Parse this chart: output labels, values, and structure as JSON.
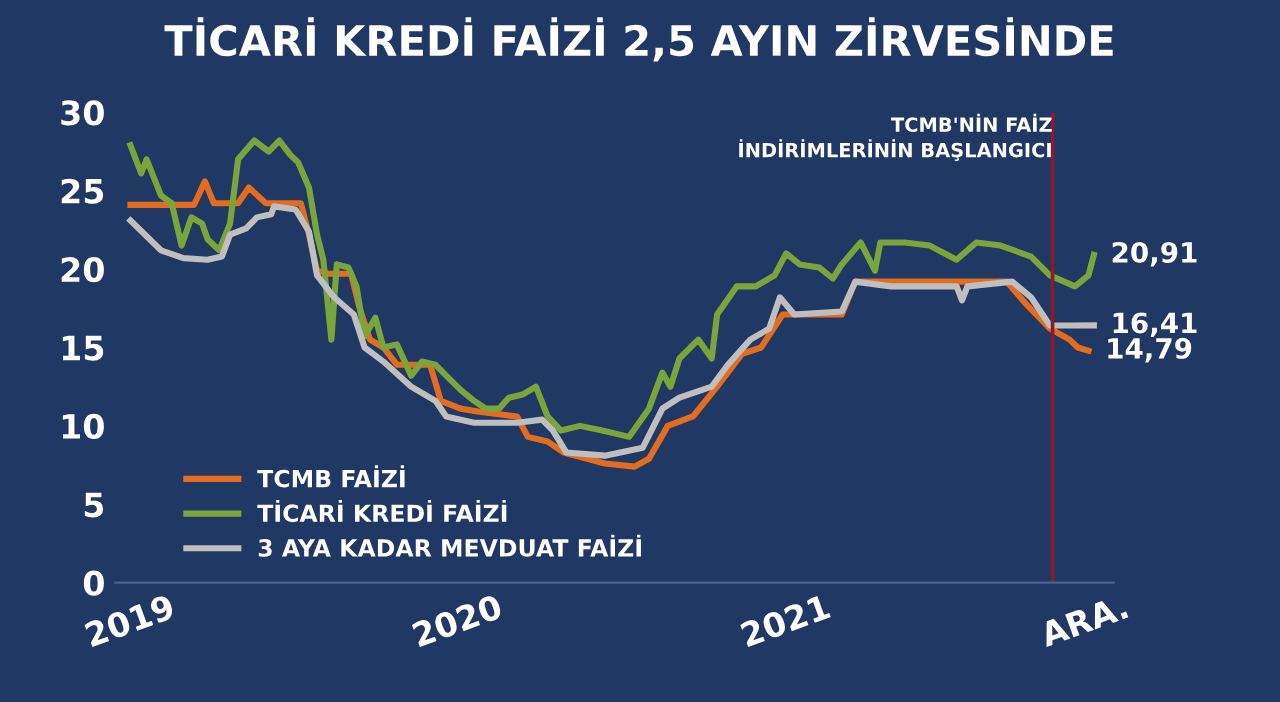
{
  "chart_data": {
    "type": "line",
    "title": "TİCARİ KREDİ FAİZİ 2,5 AYIN ZİRVESİNDE",
    "xlim": [
      "2018-12-15",
      "2022-01-01"
    ],
    "xticks": [
      {
        "value": "2019-01-01",
        "label": "2019"
      },
      {
        "value": "2020-01-01",
        "label": "2020"
      },
      {
        "value": "2021-01-01",
        "label": "2021"
      },
      {
        "value": "2021-12-01",
        "label": "ARA."
      }
    ],
    "ylim": [
      0,
      30
    ],
    "yticks": [
      0,
      5,
      10,
      15,
      20,
      25,
      30
    ],
    "grid": false,
    "legend": "bottom left",
    "line_style": "solid",
    "marker": "none",
    "ref_lines": [
      {
        "axis": "x",
        "value": "2021-10-25",
        "label": "TCMB'NİN FAİZ\nİNDİRİMLERİNİN BAŞLANGICI",
        "color": "#8b1a2a"
      }
    ],
    "series": [
      {
        "name": "TCMB FAİZİ",
        "color": "#e46c1f",
        "x": [
          "2019-01-01",
          "2019-03-13",
          "2019-03-25",
          "2019-04-04",
          "2019-05-01",
          "2019-05-13",
          "2019-06-01",
          "2019-07-10",
          "2019-07-19",
          "2019-07-28",
          "2019-08-10",
          "2019-09-04",
          "2019-09-13",
          "2019-09-25",
          "2019-10-10",
          "2019-10-25",
          "2019-12-01",
          "2019-12-13",
          "2020-01-04",
          "2020-01-25",
          "2020-03-07",
          "2020-03-19",
          "2020-04-10",
          "2020-04-28",
          "2020-06-13",
          "2020-07-16",
          "2020-08-01",
          "2020-08-22",
          "2020-09-19",
          "2020-10-16",
          "2020-11-13",
          "2020-12-04",
          "2020-12-28",
          "2021-03-04",
          "2021-03-19",
          "2021-09-04",
          "2021-09-25",
          "2021-10-22",
          "2021-11-13",
          "2021-11-22",
          "2021-12-04"
        ],
        "values": [
          24.1,
          24.1,
          25.6,
          24.2,
          24.2,
          25.2,
          24.2,
          24.2,
          22.2,
          19.9,
          19.7,
          19.7,
          17.6,
          15.5,
          15.0,
          13.9,
          13.9,
          11.6,
          11.1,
          10.9,
          10.6,
          9.3,
          9.0,
          8.3,
          7.6,
          7.4,
          7.9,
          10.0,
          10.6,
          12.5,
          14.6,
          15.0,
          17.1,
          17.1,
          19.2,
          19.2,
          17.8,
          16.2,
          15.5,
          15.0,
          14.79
        ],
        "value_labels": [
          null,
          null,
          null,
          null,
          null,
          null,
          null,
          null,
          null,
          null,
          null,
          null,
          null,
          null,
          null,
          null,
          null,
          null,
          null,
          null,
          null,
          null,
          null,
          null,
          null,
          null,
          null,
          null,
          null,
          null,
          null,
          null,
          null,
          null,
          null,
          null,
          null,
          null,
          null,
          null,
          "14,79"
        ]
      },
      {
        "name": "TİCARİ KREDİ FAİZİ",
        "color": "#7aa53a",
        "x": [
          "2019-01-01",
          "2019-01-13",
          "2019-01-19",
          "2019-02-04",
          "2019-02-16",
          "2019-02-27",
          "2019-03-10",
          "2019-03-22",
          "2019-03-28",
          "2019-04-10",
          "2019-04-22",
          "2019-05-01",
          "2019-05-19",
          "2019-06-04",
          "2019-06-16",
          "2019-06-28",
          "2019-07-07",
          "2019-07-19",
          "2019-07-28",
          "2019-08-04",
          "2019-08-13",
          "2019-08-19",
          "2019-09-01",
          "2019-09-10",
          "2019-09-19",
          "2019-10-01",
          "2019-10-10",
          "2019-10-25",
          "2019-11-10",
          "2019-11-22",
          "2019-12-07",
          "2019-12-19",
          "2020-01-04",
          "2020-01-19",
          "2020-02-01",
          "2020-02-16",
          "2020-02-27",
          "2020-03-13",
          "2020-03-28",
          "2020-04-10",
          "2020-04-25",
          "2020-05-16",
          "2020-06-10",
          "2020-07-10",
          "2020-08-01",
          "2020-08-16",
          "2020-08-25",
          "2020-09-04",
          "2020-09-25",
          "2020-10-10",
          "2020-10-16",
          "2020-11-07",
          "2020-11-28",
          "2020-12-19",
          "2021-01-01",
          "2021-01-16",
          "2021-02-07",
          "2021-02-22",
          "2021-03-04",
          "2021-03-25",
          "2021-04-10",
          "2021-04-16",
          "2021-05-13",
          "2021-06-10",
          "2021-07-10",
          "2021-08-01",
          "2021-08-28",
          "2021-10-01",
          "2021-10-22",
          "2021-11-19",
          "2021-12-04",
          "2021-12-10"
        ],
        "values": [
          27.9,
          26.1,
          27.0,
          24.7,
          24.2,
          21.5,
          23.3,
          22.9,
          21.9,
          21.2,
          22.9,
          27.0,
          28.2,
          27.5,
          28.2,
          27.3,
          26.8,
          25.2,
          22.2,
          20.6,
          15.5,
          20.3,
          20.1,
          18.9,
          15.7,
          16.9,
          15.0,
          15.2,
          13.2,
          14.1,
          13.9,
          13.2,
          12.3,
          11.6,
          11.1,
          11.1,
          11.8,
          12.0,
          12.5,
          10.6,
          9.7,
          10.0,
          9.7,
          9.3,
          11.1,
          13.4,
          12.5,
          14.3,
          15.5,
          14.3,
          17.1,
          18.9,
          18.9,
          19.6,
          21.0,
          20.3,
          20.1,
          19.4,
          20.3,
          21.7,
          19.9,
          21.7,
          21.7,
          21.5,
          20.6,
          21.7,
          21.5,
          20.8,
          19.6,
          18.9,
          19.6,
          20.91
        ],
        "value_labels": [
          null,
          null,
          null,
          null,
          null,
          null,
          null,
          null,
          null,
          null,
          null,
          null,
          null,
          null,
          null,
          null,
          null,
          null,
          null,
          null,
          null,
          null,
          null,
          null,
          null,
          null,
          null,
          null,
          null,
          null,
          null,
          null,
          null,
          null,
          null,
          null,
          null,
          null,
          null,
          null,
          null,
          null,
          null,
          null,
          null,
          null,
          null,
          null,
          null,
          null,
          null,
          null,
          null,
          null,
          null,
          null,
          null,
          null,
          null,
          null,
          null,
          null,
          null,
          null,
          null,
          null,
          null,
          null,
          null,
          null,
          null,
          "20,91"
        ]
      },
      {
        "name": "3 AYA KADAR MEVDUAT FAİZİ",
        "color": "#bfbfbf",
        "x": [
          "2019-01-01",
          "2019-02-04",
          "2019-03-01",
          "2019-03-28",
          "2019-04-13",
          "2019-04-22",
          "2019-05-10",
          "2019-05-22",
          "2019-06-07",
          "2019-06-10",
          "2019-07-04",
          "2019-07-19",
          "2019-07-28",
          "2019-08-16",
          "2019-09-07",
          "2019-09-19",
          "2019-10-10",
          "2019-11-10",
          "2019-12-07",
          "2019-12-19",
          "2020-01-19",
          "2020-03-07",
          "2020-04-04",
          "2020-04-16",
          "2020-05-01",
          "2020-06-13",
          "2020-07-25",
          "2020-08-16",
          "2020-09-04",
          "2020-10-10",
          "2020-10-28",
          "2020-11-22",
          "2020-12-13",
          "2020-12-25",
          "2021-01-10",
          "2021-03-04",
          "2021-03-19",
          "2021-04-28",
          "2021-07-10",
          "2021-07-16",
          "2021-07-22",
          "2021-09-10",
          "2021-10-01",
          "2021-10-22",
          "2021-11-13",
          "2021-12-10"
        ],
        "values": [
          23.1,
          21.2,
          20.7,
          20.6,
          20.8,
          22.2,
          22.6,
          23.3,
          23.5,
          24.0,
          23.8,
          22.4,
          19.6,
          18.2,
          17.1,
          15.0,
          14.1,
          12.5,
          11.6,
          10.6,
          10.2,
          10.2,
          10.4,
          9.7,
          8.3,
          8.1,
          8.6,
          11.1,
          11.8,
          12.5,
          13.9,
          15.5,
          16.2,
          18.2,
          17.1,
          17.3,
          19.2,
          18.9,
          18.9,
          18.0,
          18.9,
          19.2,
          18.2,
          16.4,
          16.4,
          16.41
        ],
        "value_labels": [
          null,
          null,
          null,
          null,
          null,
          null,
          null,
          null,
          null,
          null,
          null,
          null,
          null,
          null,
          null,
          null,
          null,
          null,
          null,
          null,
          null,
          null,
          null,
          null,
          null,
          null,
          null,
          null,
          null,
          null,
          null,
          null,
          null,
          null,
          null,
          null,
          null,
          null,
          null,
          null,
          null,
          null,
          null,
          null,
          null,
          "16,41"
        ]
      }
    ]
  }
}
